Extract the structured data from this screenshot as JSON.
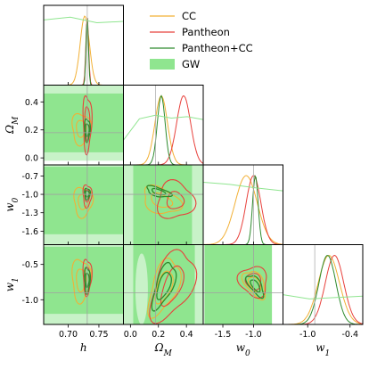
{
  "chart_data": {
    "type": "corner",
    "parameters": [
      {
        "id": "h",
        "label": "h",
        "range": [
          0.66,
          0.79
        ],
        "ticks": [
          0.7,
          0.75
        ],
        "tick_labels": [
          "0.70",
          "0.75"
        ]
      },
      {
        "id": "Om",
        "label": "Ω",
        "label_sub": "M",
        "range": [
          -0.05,
          0.52
        ],
        "ticks": [
          0.0,
          0.2,
          0.4
        ],
        "tick_labels": [
          "0.0",
          "0.2",
          "0.4"
        ]
      },
      {
        "id": "w0",
        "label": "w",
        "label_sub": "0",
        "range": [
          -1.82,
          -0.52
        ],
        "ticks": [
          -1.5,
          -1.0
        ],
        "tick_labels": [
          "-1.5",
          "-1.0"
        ],
        "y_ticks": [
          -0.7,
          -1.0,
          -1.3,
          -1.6
        ],
        "y_tick_labels": [
          "-0.7",
          "-1.0",
          "-1.3",
          "-1.6"
        ]
      },
      {
        "id": "w1",
        "label": "w",
        "label_sub": "1",
        "range": [
          -1.35,
          -0.22
        ],
        "ticks": [
          -1.0,
          -0.4
        ],
        "tick_labels": [
          "-1.0",
          "-0.4"
        ],
        "y_ticks": [
          -0.5,
          -1.0
        ],
        "y_tick_labels": [
          "-0.5",
          "-1.0"
        ]
      }
    ],
    "Om_x_ticks_bottom": [
      0.2,
      0.4
    ],
    "Om_x_tick_labels_bottom": [
      "0.2",
      "0.4"
    ],
    "w0_x_ticks_bottom": [
      -1.5,
      -1.0
    ],
    "series": [
      {
        "name": "CC",
        "color": "#f2b035"
      },
      {
        "name": "Pantheon",
        "color": "#e8413c"
      },
      {
        "name": "Pantheon+CC",
        "color": "#2e8b2e"
      },
      {
        "name": "GW",
        "color": "#8fe58f"
      }
    ],
    "reference": {
      "h": 0.731,
      "Om": 0.18,
      "w0": -1.0,
      "w1": -0.9
    },
    "marginals": {
      "h": [
        {
          "series": "CC",
          "mean": 0.727,
          "sd": 0.0075
        },
        {
          "series": "Pantheon",
          "mean": 0.731,
          "sd": 0.0022
        },
        {
          "series": "Pantheon+CC",
          "mean": 0.731,
          "sd": 0.0019
        },
        {
          "series": "GW",
          "flat": [
            0.92,
            0.96,
            0.88,
            0.9
          ]
        }
      ],
      "Om": [
        {
          "series": "CC",
          "mean": 0.22,
          "sd": 0.045
        },
        {
          "series": "Pantheon",
          "mean": 0.38,
          "sd": 0.05
        },
        {
          "series": "Pantheon+CC",
          "mean": 0.22,
          "sd": 0.028
        },
        {
          "series": "GW",
          "flat": [
            0.35,
            0.65,
            0.7,
            0.66,
            0.68,
            0.64
          ]
        }
      ],
      "w0": [
        {
          "series": "CC",
          "mean": -1.12,
          "sd": 0.18
        },
        {
          "series": "Pantheon",
          "mean": -1.0,
          "sd": 0.12
        },
        {
          "series": "Pantheon+CC",
          "mean": -0.97,
          "sd": 0.045
        },
        {
          "series": "GW",
          "flat": [
            0.88,
            0.85,
            0.8,
            0.76
          ]
        }
      ],
      "w1": [
        {
          "series": "CC",
          "mean": -0.7,
          "sd": 0.15
        },
        {
          "series": "Pantheon",
          "mean": -0.62,
          "sd": 0.13
        },
        {
          "series": "Pantheon+CC",
          "mean": -0.72,
          "sd": 0.12
        },
        {
          "series": "GW",
          "flat": [
            0.42,
            0.36,
            0.38,
            0.4
          ]
        }
      ]
    },
    "contours": {
      "Om|h": [
        {
          "series": "CC",
          "cx": 0.721,
          "cy": 0.21,
          "rx": [
            0.008,
            0.015
          ],
          "ry": [
            0.06,
            0.11
          ],
          "rot": 0
        },
        {
          "series": "Pantheon",
          "cx": 0.731,
          "cy": 0.25,
          "rx": [
            0.004,
            0.007
          ],
          "ry": [
            0.12,
            0.2
          ],
          "rot": 0
        },
        {
          "series": "Pantheon+CC",
          "cx": 0.731,
          "cy": 0.2,
          "rx": [
            0.003,
            0.0045
          ],
          "ry": [
            0.045,
            0.08
          ],
          "rot": 0
        }
      ],
      "w0|h": [
        {
          "series": "CC",
          "cx": 0.724,
          "cy": -1.12,
          "rx": [
            0.008,
            0.015
          ],
          "ry": [
            0.12,
            0.24
          ],
          "rot": 0
        },
        {
          "series": "Pantheon",
          "cx": 0.731,
          "cy": -1.02,
          "rx": [
            0.004,
            0.007
          ],
          "ry": [
            0.1,
            0.18
          ],
          "rot": 0
        },
        {
          "series": "Pantheon+CC",
          "cx": 0.731,
          "cy": -0.99,
          "rx": [
            0.003,
            0.0045
          ],
          "ry": [
            0.05,
            0.09
          ],
          "rot": 0
        }
      ],
      "w0|Om": [
        {
          "series": "CC",
          "cx": 0.22,
          "cy": -1.1,
          "rx": [
            0.08,
            0.14
          ],
          "ry": [
            0.1,
            0.2
          ],
          "rot": -0.4
        },
        {
          "series": "Pantheon",
          "cx": 0.32,
          "cy": -1.1,
          "rx": [
            0.06,
            0.13
          ],
          "ry": [
            0.14,
            0.3
          ],
          "rot": -0.55
        },
        {
          "series": "Pantheon+CC",
          "cx": 0.2,
          "cy": -0.96,
          "rx": [
            0.05,
            0.09
          ],
          "ry": [
            0.04,
            0.07
          ],
          "rot": -0.3
        }
      ],
      "w1|h": [
        {
          "series": "CC",
          "cx": 0.721,
          "cy": -0.72,
          "rx": [
            0.008,
            0.015
          ],
          "ry": [
            0.16,
            0.3
          ],
          "rot": 0
        },
        {
          "series": "Pantheon",
          "cx": 0.731,
          "cy": -0.67,
          "rx": [
            0.004,
            0.007
          ],
          "ry": [
            0.14,
            0.25
          ],
          "rot": 0
        },
        {
          "series": "Pantheon+CC",
          "cx": 0.731,
          "cy": -0.72,
          "rx": [
            0.003,
            0.0045
          ],
          "ry": [
            0.1,
            0.18
          ],
          "rot": 0
        }
      ],
      "w1|Om": [
        {
          "series": "CC",
          "cx": 0.24,
          "cy": -0.82,
          "rx": [
            0.05,
            0.09
          ],
          "ry": [
            0.24,
            0.42
          ],
          "rot": -0.35
        },
        {
          "series": "Pantheon",
          "cx": 0.3,
          "cy": -0.8,
          "rx": [
            0.06,
            0.13
          ],
          "ry": [
            0.3,
            0.52
          ],
          "rot": -0.4
        },
        {
          "series": "Pantheon+CC",
          "cx": 0.24,
          "cy": -0.8,
          "rx": [
            0.04,
            0.06
          ],
          "ry": [
            0.2,
            0.34
          ],
          "rot": -0.35
        }
      ],
      "w1|w0": [
        {
          "series": "CC",
          "cx": -0.98,
          "cy": -0.78,
          "rx": [
            0.08,
            0.14
          ],
          "ry": [
            0.12,
            0.22
          ],
          "rot": 0.6
        },
        {
          "series": "Pantheon",
          "cx": -1.0,
          "cy": -0.74,
          "rx": [
            0.12,
            0.22
          ],
          "ry": [
            0.12,
            0.22
          ],
          "rot": 0.6
        },
        {
          "series": "Pantheon+CC",
          "cx": -0.97,
          "cy": -0.8,
          "rx": [
            0.05,
            0.09
          ],
          "ry": [
            0.1,
            0.18
          ],
          "rot": 0.6
        }
      ]
    },
    "gw_bands": {
      "Om|h": {
        "y": [
          0.04,
          0.46
        ],
        "y_outer": [
          -0.02,
          0.52
        ]
      },
      "w0|h": {
        "y": [
          -1.65,
          -0.55
        ],
        "y_outer": [
          -1.82,
          -0.52
        ]
      },
      "w1|h": {
        "y": [
          -1.2,
          -0.25
        ],
        "y_outer": [
          -1.35,
          -0.22
        ]
      },
      "w0|Om": {
        "x": [
          0.02,
          0.44
        ],
        "x_outer": [
          -0.05,
          0.52
        ]
      },
      "w1|Om": {
        "x": [
          0.02,
          0.46
        ],
        "x_outer": [
          -0.05,
          0.52
        ]
      },
      "w1|w0": {
        "x": [
          -1.8,
          -0.7
        ],
        "y": [
          -1.35,
          -0.22
        ]
      }
    },
    "legend": {
      "position": "top-right"
    }
  }
}
